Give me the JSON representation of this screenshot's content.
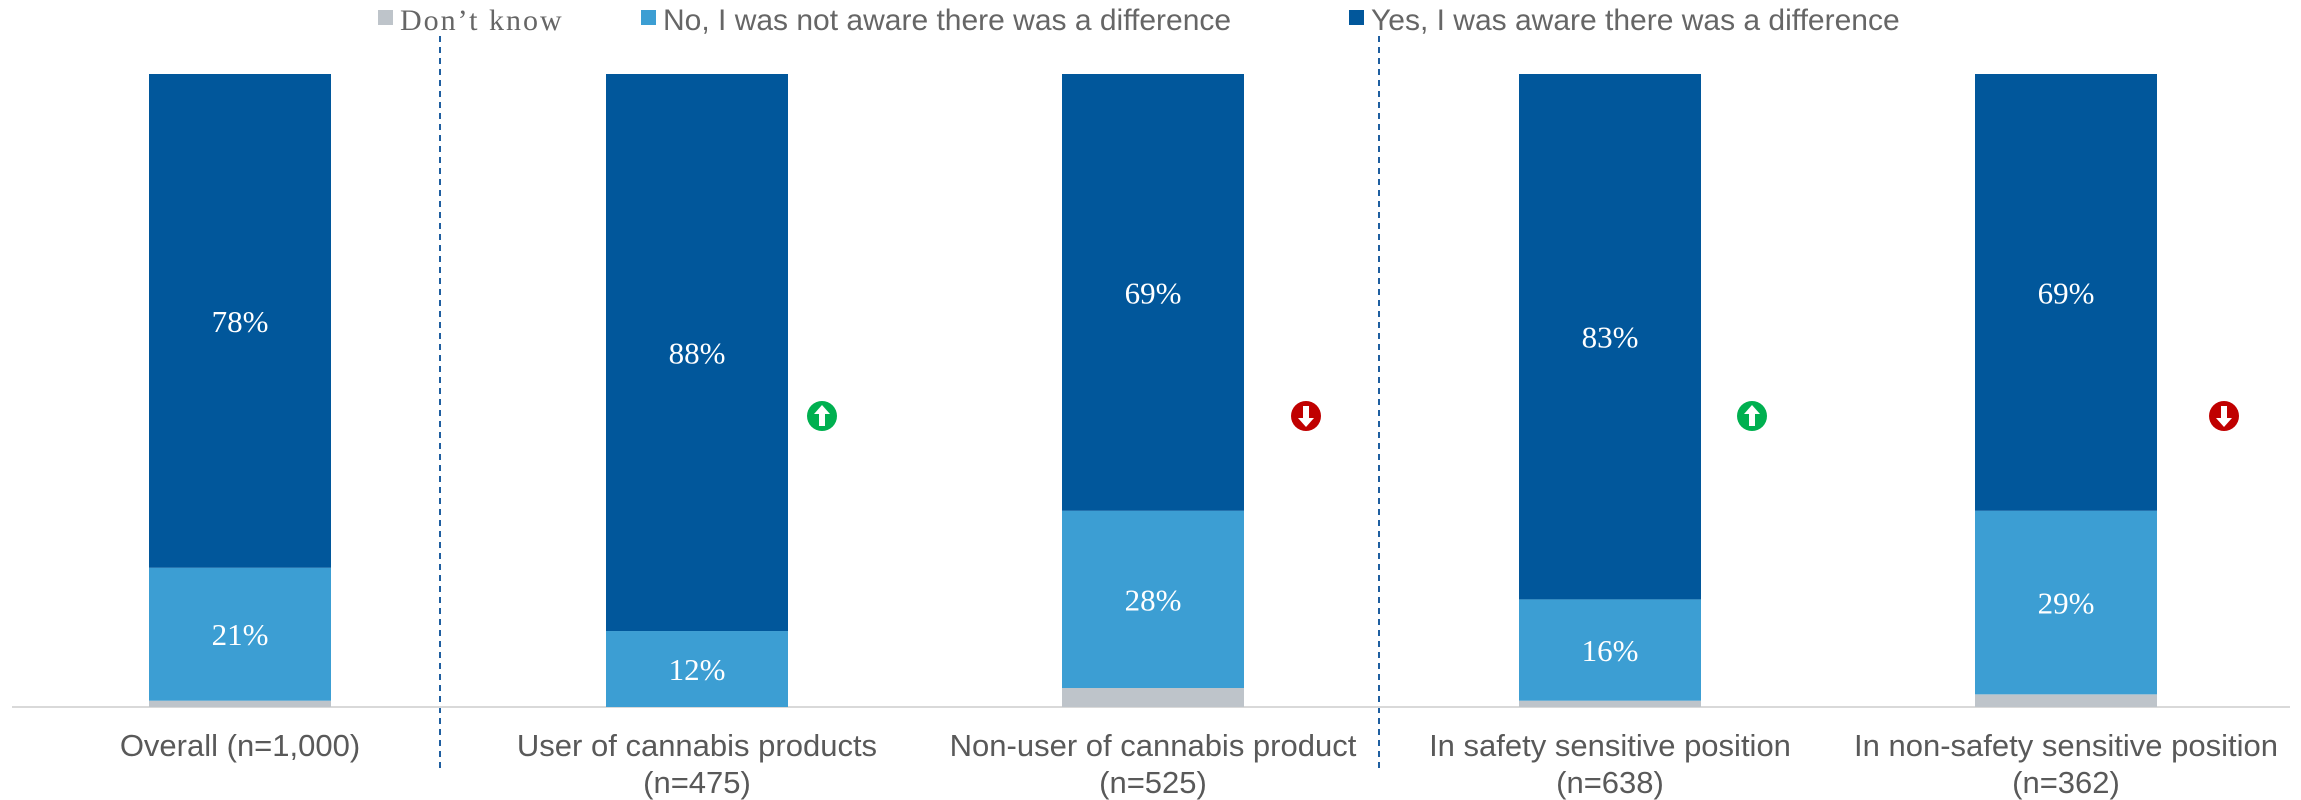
{
  "chart_data": {
    "type": "bar",
    "stacked": true,
    "categories": [
      [
        "Overall (n=1,000)"
      ],
      [
        "User of cannabis products",
        "(n=475)"
      ],
      [
        "Non-user of cannabis product",
        "(n=525)"
      ],
      [
        "In safety sensitive position",
        "(n=638)"
      ],
      [
        "In non-safety sensitive position",
        "(n=362)"
      ]
    ],
    "series": [
      {
        "name": "Don't know",
        "legend_label": "Don’t know",
        "color": "#BEC4CA",
        "values": [
          1,
          0,
          3,
          1,
          2
        ],
        "labels": [
          "",
          "",
          "",
          "",
          ""
        ]
      },
      {
        "name": "No, I was not aware there was a difference",
        "legend_label": "No, I was not aware there was a difference",
        "color": "#3C9ED3",
        "values": [
          21,
          12,
          28,
          16,
          29
        ],
        "labels": [
          "21%",
          "12%",
          "28%",
          "16%",
          "29%"
        ]
      },
      {
        "name": "Yes, I was aware there was a difference",
        "legend_label": "Yes, I was aware there was a difference",
        "color": "#01579B",
        "values": [
          78,
          88,
          69,
          83,
          69
        ],
        "labels": [
          "78%",
          "88%",
          "69%",
          "83%",
          "69%"
        ]
      }
    ],
    "legend_order": [
      0,
      1,
      2
    ],
    "ylim": [
      0,
      100
    ],
    "legend_position": "top",
    "grid": false,
    "group_dividers_after": [
      0,
      2
    ],
    "significance_markers": [
      "none",
      "up",
      "down",
      "up",
      "down"
    ],
    "marker_colors": {
      "up": "#00B050",
      "down": "#C00000"
    }
  }
}
